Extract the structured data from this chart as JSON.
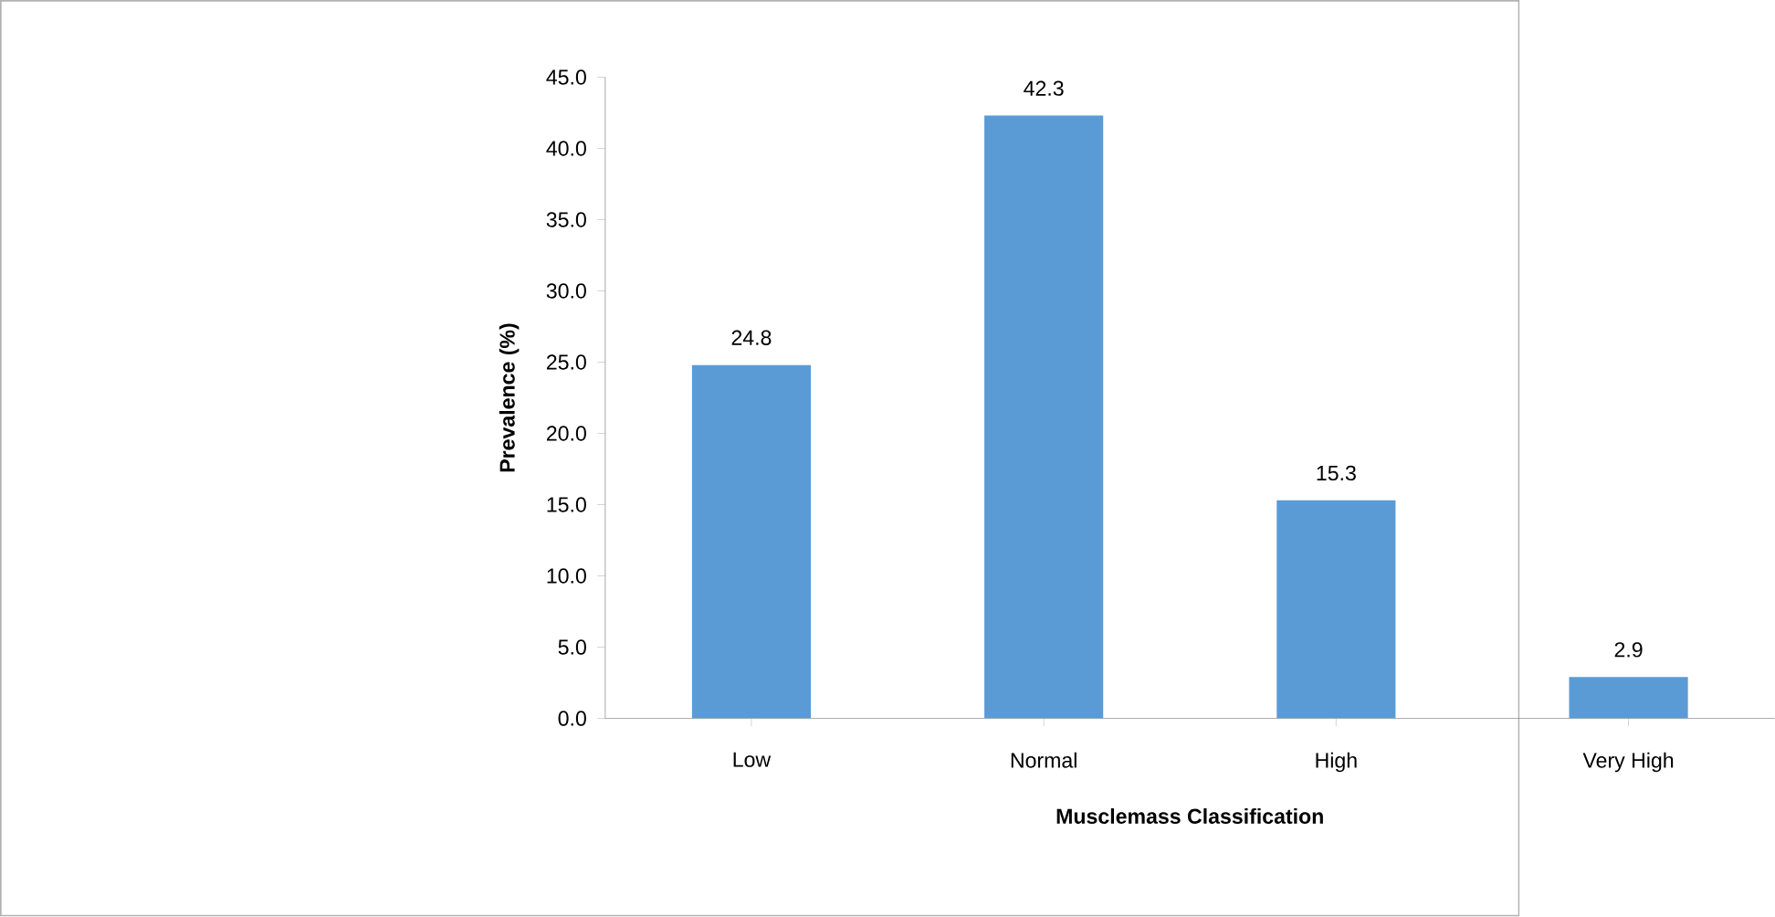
{
  "chart_data": {
    "type": "bar",
    "xlabel": "Musclemass Classification",
    "ylabel": "Prevalence (%)",
    "categories": [
      "Low",
      "Normal",
      "High",
      "Very High"
    ],
    "values": [
      24.8,
      42.3,
      15.3,
      2.9
    ],
    "color": "#5b9bd5",
    "ylim": [
      0,
      45
    ],
    "yticks": [
      {
        "value": 0,
        "label": "0.0"
      },
      {
        "value": 5,
        "label": "5.0"
      },
      {
        "value": 10,
        "label": "10.0"
      },
      {
        "value": 15,
        "label": "15.0"
      },
      {
        "value": 20,
        "label": "20.0"
      },
      {
        "value": 25,
        "label": "25.0"
      },
      {
        "value": 30,
        "label": "30.0"
      },
      {
        "value": 35,
        "label": "35.0"
      },
      {
        "value": 40,
        "label": "40.0"
      },
      {
        "value": 45,
        "label": "45.0"
      }
    ],
    "data_labels": true
  }
}
